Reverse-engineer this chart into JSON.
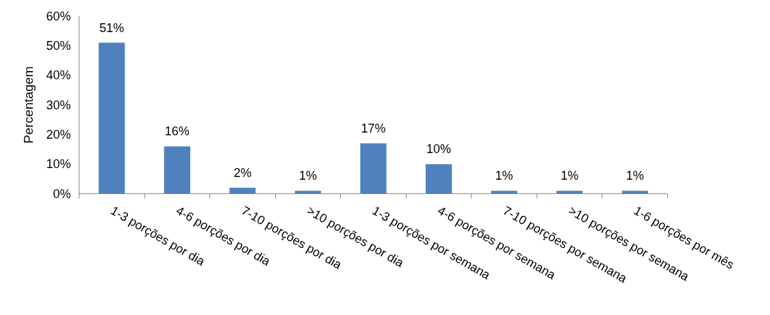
{
  "chart_data": {
    "type": "bar",
    "ylabel": "Percentagem",
    "categories": [
      "1-3 porções por dia",
      "4-6 porções por dia",
      "7-10 porções por dia",
      ">10 porções por dia",
      "1-3 porções por semana",
      "4-6 porções por semana",
      "7-10 porções por semana",
      ">10 porções por semana",
      "1-6 porções por mês"
    ],
    "values": [
      51,
      16,
      2,
      1,
      17,
      10,
      1,
      1,
      1
    ],
    "color": "#4f81bd",
    "value_labels": [
      "51%",
      "16%",
      "2%",
      "1%",
      "17%",
      "10%",
      "1%",
      "1%",
      "1%"
    ],
    "ylim": [
      0,
      60
    ],
    "yticks": [
      {
        "value": 0,
        "label": "0%"
      },
      {
        "value": 10,
        "label": "10%"
      },
      {
        "value": 20,
        "label": "20%"
      },
      {
        "value": 30,
        "label": "30%"
      },
      {
        "value": 40,
        "label": "40%"
      },
      {
        "value": 50,
        "label": "50%"
      },
      {
        "value": 60,
        "label": "60%"
      }
    ]
  }
}
